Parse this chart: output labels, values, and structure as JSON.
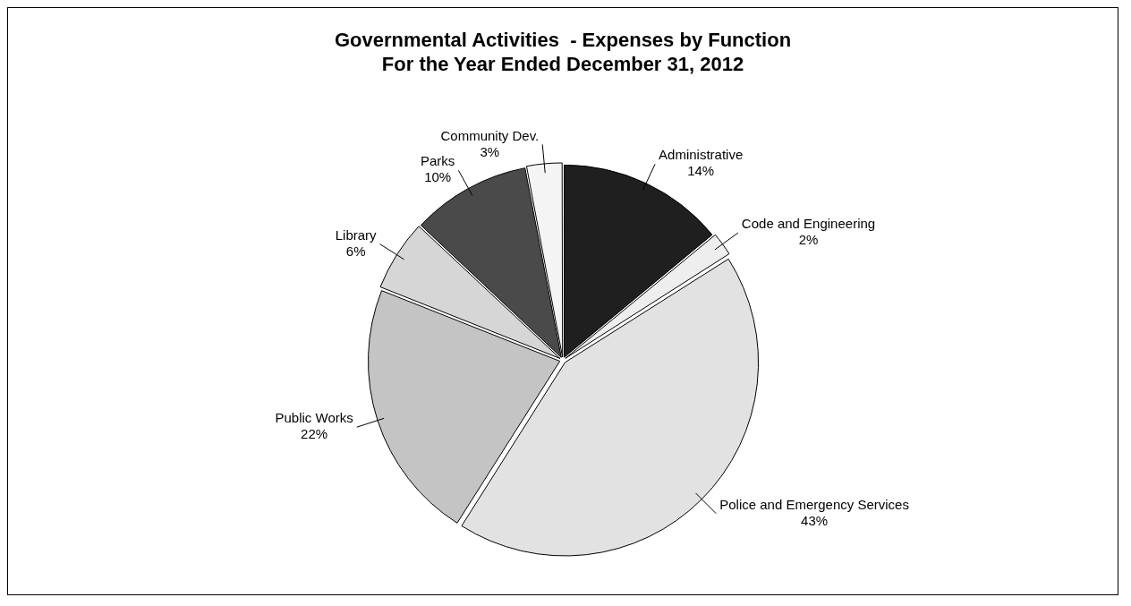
{
  "chart_data": {
    "type": "pie",
    "title": "Governmental Activities  - Expenses by Function",
    "subtitle": "For the Year Ended December 31, 2012",
    "categories": [
      "Administrative",
      "Code and Engineering",
      "Police and Emergency Services",
      "Public Works",
      "Library",
      "Parks",
      "Community Dev."
    ],
    "values": [
      14,
      2,
      43,
      22,
      6,
      10,
      3
    ],
    "value_labels": [
      "14%",
      "2%",
      "43%",
      "22%",
      "6%",
      "10%",
      "3%"
    ],
    "colors": [
      "#1f1f1f",
      "#eeeeee",
      "#e2e2e2",
      "#c4c4c4",
      "#d6d6d6",
      "#4a4a4a",
      "#f4f4f4"
    ],
    "legend": false
  }
}
